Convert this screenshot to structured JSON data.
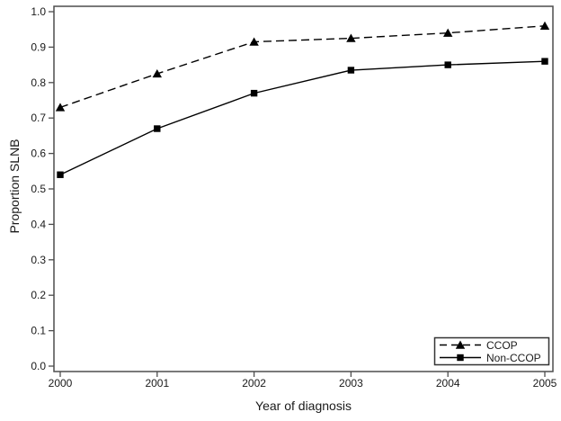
{
  "figure": {
    "background": "#ffffff",
    "frame_color": "#4d4d4d",
    "text_color": "#1a1a1a",
    "data_color": "#000000"
  },
  "chart_data": {
    "type": "line",
    "title": "",
    "xlabel": "Year of diagnosis",
    "ylabel": "Proportion SLNB",
    "x": [
      2000,
      2001,
      2002,
      2003,
      2004,
      2005
    ],
    "ylim": [
      0.0,
      1.0
    ],
    "ytick_step": 0.1,
    "ytick_labels": [
      "0.0",
      "0.1",
      "0.2",
      "0.3",
      "0.4",
      "0.5",
      "0.6",
      "0.7",
      "0.8",
      "0.9",
      "1.0"
    ],
    "grid": false,
    "legend": {
      "position": "bottom-right",
      "border": true
    },
    "series": [
      {
        "name": "CCOP",
        "line_style": "dashed",
        "marker": "triangle",
        "color": "#000000",
        "values": [
          0.73,
          0.825,
          0.915,
          0.925,
          0.94,
          0.96
        ]
      },
      {
        "name": "Non-CCOP",
        "line_style": "solid",
        "marker": "square",
        "color": "#000000",
        "values": [
          0.54,
          0.67,
          0.77,
          0.835,
          0.85,
          0.86
        ]
      }
    ]
  }
}
